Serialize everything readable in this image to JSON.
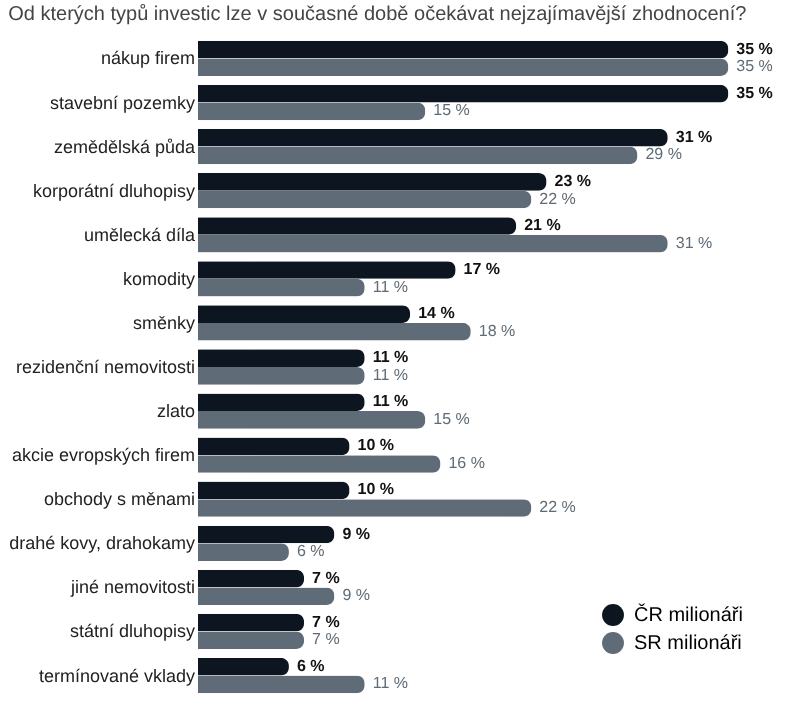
{
  "chart_data": {
    "type": "bar",
    "orientation": "horizontal",
    "title": "Od kterých typů investic lze v současné době očekávat nejzajímavější zhodnocení?",
    "categories": [
      "nákup firem",
      "stavební pozemky",
      "zemědělská půda",
      "korporátní dluhopisy",
      "umělecká díla",
      "komodity",
      "směnky",
      "rezidenční nemovitosti",
      "zlato",
      "akcie evropských firem",
      "obchody s měnami",
      "drahé kovy, drahokamy",
      "jiné nemovitosti",
      "státní dluhopisy",
      "termínované vklady"
    ],
    "series": [
      {
        "name": "ČR milionáři",
        "color": "#0d1620",
        "values": [
          35,
          35,
          31,
          23,
          21,
          17,
          14,
          11,
          11,
          10,
          10,
          9,
          7,
          7,
          6
        ],
        "value_labels": [
          "35 %",
          "35 %",
          "31 %",
          "23 %",
          "21 %",
          "17 %",
          "14 %",
          "11 %",
          "11 %",
          "10 %",
          "10 %",
          "9 %",
          "7 %",
          "7 %",
          "6 %"
        ]
      },
      {
        "name": "SR milionáři",
        "color": "#5f6b76",
        "values": [
          35,
          15,
          29,
          22,
          31,
          11,
          18,
          11,
          15,
          16,
          22,
          6,
          9,
          7,
          11
        ],
        "value_labels": [
          "35 %",
          "15 %",
          "29 %",
          "22 %",
          "31 %",
          "11 %",
          "18 %",
          "11 %",
          "15 %",
          "16 %",
          "22 %",
          "6 %",
          "9 %",
          "7 %",
          "11 %"
        ]
      }
    ],
    "legend": "bottom right",
    "grid": false
  }
}
